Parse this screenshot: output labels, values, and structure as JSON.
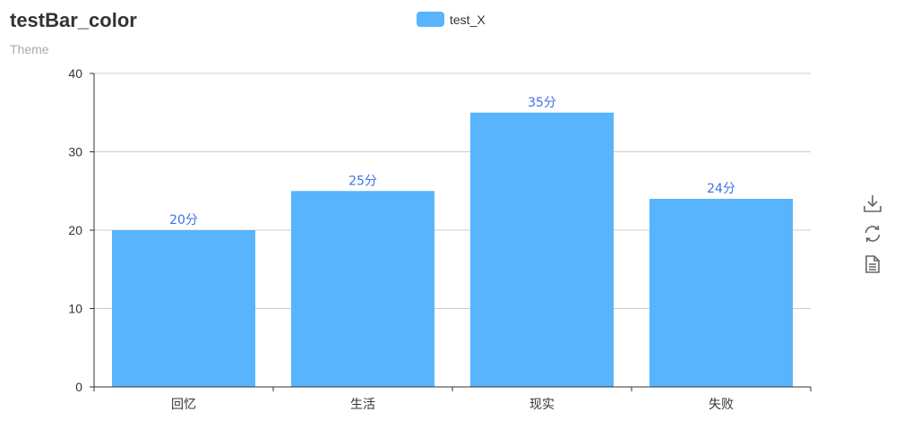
{
  "chart_data": {
    "type": "bar",
    "title": "testBar_color",
    "subtitle": "Theme",
    "categories": [
      "回忆",
      "生活",
      "现实",
      "失败"
    ],
    "series": [
      {
        "name": "test_X",
        "values": [
          20,
          25,
          35,
          24
        ],
        "labels": [
          "20分",
          "25分",
          "35分",
          "24分"
        ]
      }
    ],
    "ylim": [
      0,
      40
    ],
    "yticks": [
      0,
      10,
      20,
      30,
      40
    ],
    "grid": true,
    "legend_position": "top-center"
  },
  "colors": {
    "bar": "#58b4fd",
    "label": "#3f72e6",
    "axis": "#333333",
    "grid": "#cccccc"
  },
  "toolbox": [
    {
      "name": "download-icon"
    },
    {
      "name": "refresh-icon"
    },
    {
      "name": "data-view-icon"
    }
  ]
}
